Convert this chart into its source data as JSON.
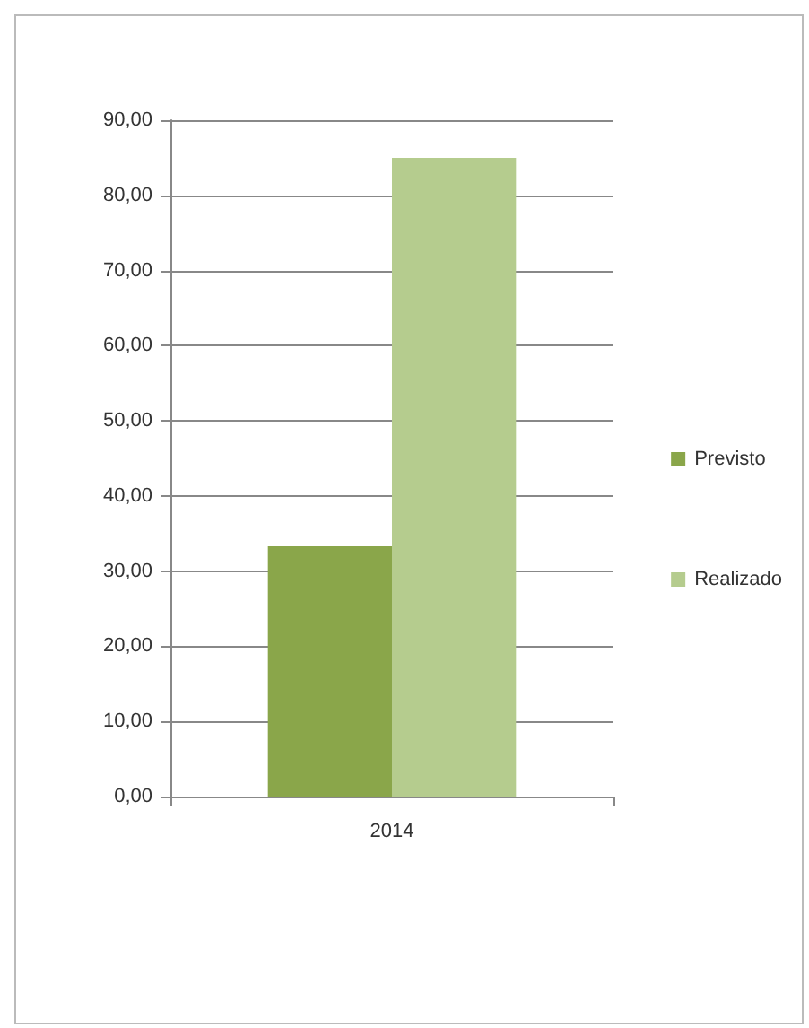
{
  "chart_data": {
    "type": "bar",
    "categories": [
      "2014"
    ],
    "series": [
      {
        "name": "Previsto",
        "color": "#8aa64a",
        "values": [
          33.3
        ]
      },
      {
        "name": "Realizado",
        "color": "#b5cc8e",
        "values": [
          85
        ]
      }
    ],
    "ylim": [
      0,
      90
    ],
    "yticks": [
      {
        "value": 0,
        "label": "0,00"
      },
      {
        "value": 10,
        "label": "10,00"
      },
      {
        "value": 20,
        "label": "20,00"
      },
      {
        "value": 30,
        "label": "30,00"
      },
      {
        "value": 40,
        "label": "40,00"
      },
      {
        "value": 50,
        "label": "50,00"
      },
      {
        "value": 60,
        "label": "60,00"
      },
      {
        "value": 70,
        "label": "70,00"
      },
      {
        "value": 80,
        "label": "80,00"
      },
      {
        "value": 90,
        "label": "90,00"
      }
    ],
    "grid": "y",
    "legend": "right"
  }
}
